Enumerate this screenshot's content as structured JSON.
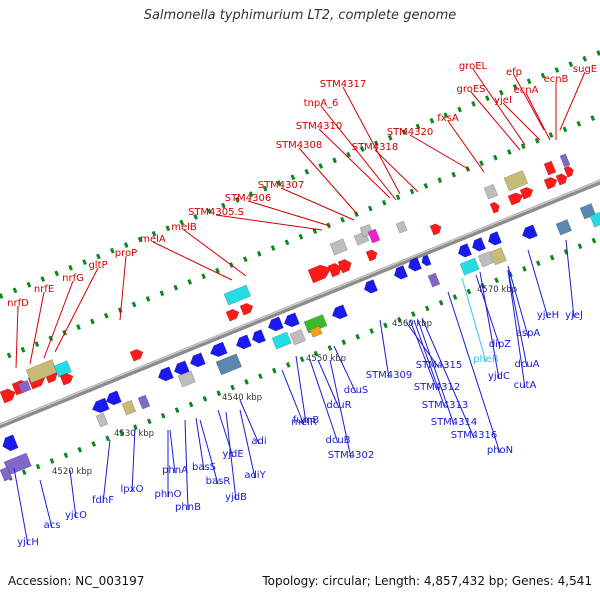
{
  "title": "Salmonella typhimurium LT2, complete genome",
  "footer": {
    "accession": "Accession: NC_003197",
    "summary": "Topology: circular; Length: 4,857,432 bp; Genes: 4,541"
  },
  "colors": {
    "background": "#ffffff",
    "backbone": "#8c8c8c",
    "label_top": "#d40000",
    "label_bottom": "#1a1ad9",
    "label_highlight": "#33c8ee",
    "tick": "#0a8a1e",
    "gene_red": "#ff1a1a",
    "gene_blue": "#1a1aee",
    "gene_cyan": "#22dde6",
    "gene_khaki": "#c8bb7a",
    "gene_gray": "#bdbdbd",
    "gene_steel": "#5a87b0",
    "gene_purple": "#8366c9",
    "gene_green": "#3cbb2a",
    "gene_magenta": "#ee22cc"
  },
  "scale_labels": [
    "4520 kbp",
    "4530 kbp",
    "4540 kbp",
    "4550 kbp",
    "4560 kbp",
    "4570 kbp"
  ],
  "top_labels": [
    "nrfD",
    "nrfE",
    "nrfG",
    "gltP",
    "proP",
    "melA",
    "melB",
    "STM4305.S",
    "STM4306",
    "STM4307",
    "STM4308",
    "STM4310",
    "tnpA_6",
    "STM4317",
    "STM4318",
    "STM4320",
    "fxsA",
    "groES",
    "groEL",
    "yjeI",
    "efp",
    "ecnA",
    "ecnB",
    "sugE"
  ],
  "bottom_labels": [
    "yjcH",
    "acs",
    "yjcO",
    "fdhF",
    "lpxO",
    "phnO",
    "phnA",
    "phnB",
    "basS",
    "basR",
    "yjdE",
    "yjdB",
    "adi",
    "adiY",
    "melR",
    "fumB",
    "dcuB",
    "dcuR",
    "dcuS",
    "STM4302",
    "STM4309",
    "STM4315",
    "STM4312",
    "STM4313",
    "STM4314",
    "STM4316",
    "phoN",
    "pheR",
    "dipZ",
    "yjdC",
    "aspA",
    "dcuA",
    "cutA",
    "yjeH",
    "yjeJ"
  ]
}
